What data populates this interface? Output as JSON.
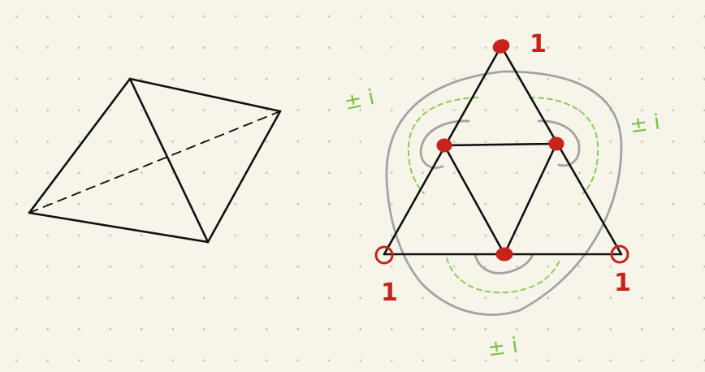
{
  "colors": {
    "background": "#f7f5ea",
    "dots": "#c9c7bb",
    "edges": "#111111",
    "gray_curves": "#a3a3a3",
    "green_dashed": "#8ecb5a",
    "red_marks": "#c8221b",
    "green_text": "#7cc046"
  },
  "tetrahedron": {
    "hidden_edge_style": "dashed"
  },
  "triangle": {
    "vertex_labels": {
      "top": "1",
      "bottom_left": "1",
      "bottom_right": "1"
    },
    "region_labels": {
      "top_left": "± i",
      "top_right": "± i",
      "bottom": "± i"
    }
  }
}
